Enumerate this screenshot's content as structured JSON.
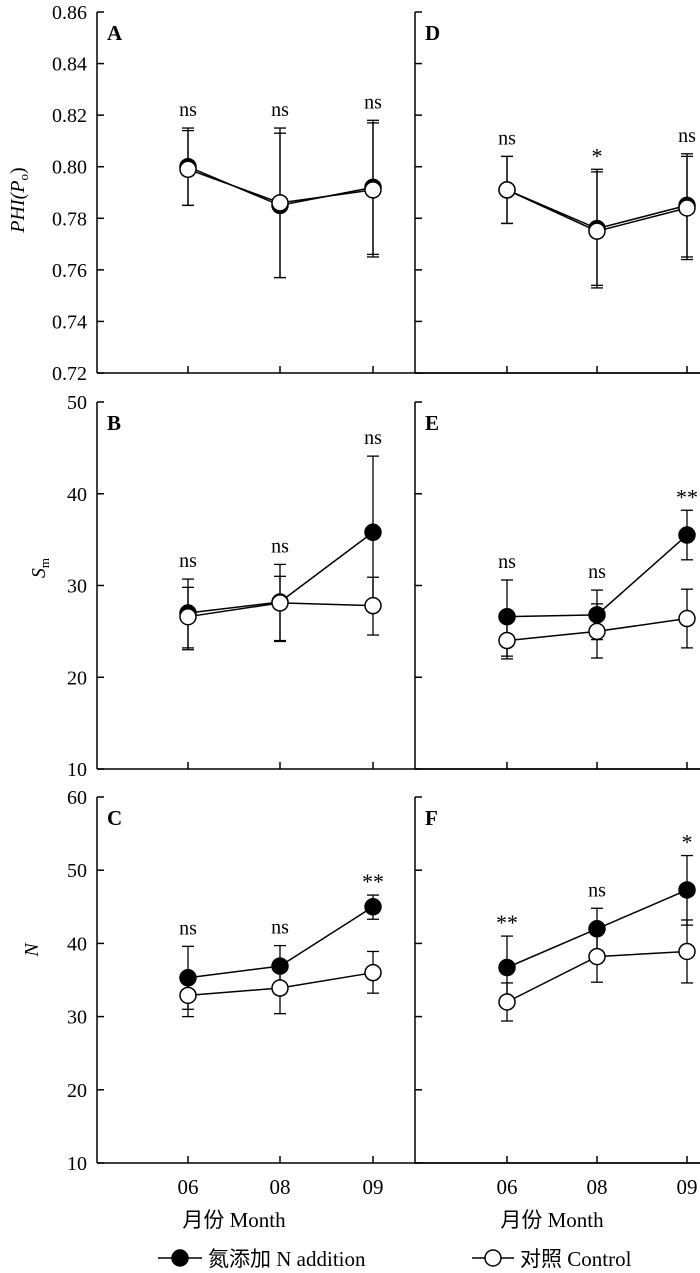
{
  "x_axis": {
    "ticks": [
      "06",
      "08",
      "09"
    ],
    "label": "月份 Month"
  },
  "legend": {
    "n_addition": "氮添加 N addition",
    "control": "对照 Control"
  },
  "chart_data": [
    {
      "type": "line",
      "panel": "A",
      "ylabel": "PHI(Po)",
      "ylim": [
        0.72,
        0.86
      ],
      "yticks": [
        "0.72",
        "0.74",
        "0.76",
        "0.78",
        "0.80",
        "0.82",
        "0.84",
        "0.86"
      ],
      "categories": [
        "06",
        "08",
        "09"
      ],
      "series": [
        {
          "name": "氮添加 N addition",
          "marker": "filled",
          "values": [
            0.8,
            0.785,
            0.792
          ],
          "err_low": [
            0.785,
            0.757,
            0.766
          ],
          "err_high": [
            0.815,
            0.813,
            0.818
          ]
        },
        {
          "name": "对照 Control",
          "marker": "open",
          "values": [
            0.799,
            0.786,
            0.791
          ],
          "err_low": [
            0.785,
            0.757,
            0.765
          ],
          "err_high": [
            0.814,
            0.815,
            0.817
          ]
        }
      ],
      "significance": [
        "ns",
        "ns",
        "ns"
      ]
    },
    {
      "type": "line",
      "panel": "B",
      "ylabel": "Sm",
      "ylim": [
        10,
        50
      ],
      "yticks": [
        "10",
        "20",
        "30",
        "40",
        "50"
      ],
      "categories": [
        "06",
        "08",
        "09"
      ],
      "series": [
        {
          "name": "氮添加 N addition",
          "marker": "filled",
          "values": [
            27.0,
            28.2,
            35.8
          ],
          "err_low": [
            23.0,
            24.0,
            27.5
          ],
          "err_high": [
            30.7,
            32.3,
            44.1
          ]
        },
        {
          "name": "对照 Control",
          "marker": "open",
          "values": [
            26.6,
            28.1,
            27.8
          ],
          "err_low": [
            23.2,
            23.9,
            24.6
          ],
          "err_high": [
            29.8,
            31.0,
            30.9
          ]
        }
      ],
      "significance": [
        "ns",
        "ns",
        "ns"
      ]
    },
    {
      "type": "line",
      "panel": "C",
      "ylabel": "N",
      "ylim": [
        10,
        60
      ],
      "yticks": [
        "10",
        "20",
        "30",
        "40",
        "50",
        "60"
      ],
      "categories": [
        "06",
        "08",
        "09"
      ],
      "series": [
        {
          "name": "氮添加 N addition",
          "marker": "filled",
          "values": [
            35.3,
            36.9,
            45.0
          ],
          "err_low": [
            31.0,
            34.0,
            43.3
          ],
          "err_high": [
            39.6,
            39.7,
            46.6
          ]
        },
        {
          "name": "对照 Control",
          "marker": "open",
          "values": [
            32.9,
            33.9,
            36.0
          ],
          "err_low": [
            30.0,
            30.4,
            33.2
          ],
          "err_high": [
            35.6,
            37.4,
            38.9
          ]
        }
      ],
      "significance": [
        "ns",
        "ns",
        "**"
      ]
    },
    {
      "type": "line",
      "panel": "D",
      "ylabel": "",
      "ylim": [
        0.72,
        0.86
      ],
      "categories": [
        "06",
        "08",
        "09"
      ],
      "series": [
        {
          "name": "氮添加 N addition",
          "marker": "filled",
          "values": [
            0.791,
            0.776,
            0.785
          ],
          "err_low": [
            0.778,
            0.754,
            0.765
          ],
          "err_high": [
            0.804,
            0.799,
            0.805
          ]
        },
        {
          "name": "对照 Control",
          "marker": "open",
          "values": [
            0.791,
            0.775,
            0.784
          ],
          "err_low": [
            0.778,
            0.753,
            0.764
          ],
          "err_high": [
            0.804,
            0.798,
            0.804
          ]
        }
      ],
      "significance": [
        "ns",
        "*",
        "ns"
      ]
    },
    {
      "type": "line",
      "panel": "E",
      "ylabel": "",
      "ylim": [
        10,
        50
      ],
      "categories": [
        "06",
        "08",
        "09"
      ],
      "series": [
        {
          "name": "氮添加 N addition",
          "marker": "filled",
          "values": [
            26.6,
            26.8,
            35.5
          ],
          "err_low": [
            22.3,
            24.1,
            32.8
          ],
          "err_high": [
            30.6,
            29.5,
            38.2
          ]
        },
        {
          "name": "对照 Control",
          "marker": "open",
          "values": [
            24.0,
            25.0,
            26.4
          ],
          "err_low": [
            22.0,
            22.1,
            23.2
          ],
          "err_high": [
            26.0,
            28.0,
            29.6
          ]
        }
      ],
      "significance": [
        "ns",
        "ns",
        "**"
      ]
    },
    {
      "type": "line",
      "panel": "F",
      "ylabel": "",
      "ylim": [
        10,
        60
      ],
      "categories": [
        "06",
        "08",
        "09"
      ],
      "series": [
        {
          "name": "氮添加 N addition",
          "marker": "filled",
          "values": [
            36.7,
            42.0,
            47.3
          ],
          "err_low": [
            32.3,
            39.0,
            42.5
          ],
          "err_high": [
            41.0,
            44.8,
            52.0
          ]
        },
        {
          "name": "对照 Control",
          "marker": "open",
          "values": [
            32.0,
            38.2,
            38.9
          ],
          "err_low": [
            29.4,
            34.7,
            34.6
          ],
          "err_high": [
            34.6,
            41.7,
            43.2
          ]
        }
      ],
      "significance": [
        "**",
        "ns",
        "*"
      ]
    }
  ]
}
